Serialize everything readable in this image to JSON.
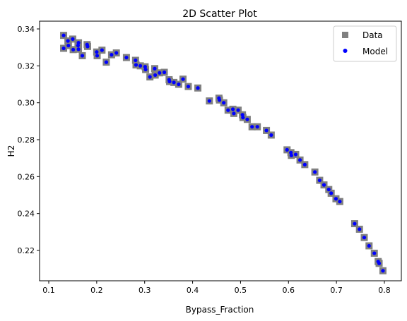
{
  "chart_data": {
    "type": "scatter",
    "title": "2D Scatter Plot",
    "xlabel": "Bypass_Fraction",
    "ylabel": "H2",
    "xlim": [
      0.1,
      0.8
    ],
    "ylim": [
      0.21,
      0.34
    ],
    "xticks": [
      "0.1",
      "0.2",
      "0.3",
      "0.4",
      "0.5",
      "0.6",
      "0.7",
      "0.8"
    ],
    "yticks": [
      "0.22",
      "0.24",
      "0.26",
      "0.28",
      "0.30",
      "0.32",
      "0.34"
    ],
    "grid": false,
    "legend": "top-right",
    "series": [
      {
        "name": "Data",
        "marker": "square",
        "color": "#808080",
        "points": [
          [
            0.131,
            0.3365
          ],
          [
            0.131,
            0.3295
          ],
          [
            0.14,
            0.3335
          ],
          [
            0.141,
            0.331
          ],
          [
            0.15,
            0.3345
          ],
          [
            0.151,
            0.3288
          ],
          [
            0.161,
            0.331
          ],
          [
            0.162,
            0.3325
          ],
          [
            0.162,
            0.329
          ],
          [
            0.17,
            0.3255
          ],
          [
            0.18,
            0.3315
          ],
          [
            0.181,
            0.3305
          ],
          [
            0.2,
            0.3275
          ],
          [
            0.201,
            0.3255
          ],
          [
            0.211,
            0.3285
          ],
          [
            0.22,
            0.322
          ],
          [
            0.231,
            0.326
          ],
          [
            0.241,
            0.327
          ],
          [
            0.262,
            0.3245
          ],
          [
            0.281,
            0.323
          ],
          [
            0.282,
            0.3205
          ],
          [
            0.291,
            0.32
          ],
          [
            0.301,
            0.3195
          ],
          [
            0.302,
            0.318
          ],
          [
            0.311,
            0.314
          ],
          [
            0.321,
            0.3185
          ],
          [
            0.322,
            0.315
          ],
          [
            0.331,
            0.3162
          ],
          [
            0.341,
            0.3165
          ],
          [
            0.351,
            0.3125
          ],
          [
            0.352,
            0.3115
          ],
          [
            0.361,
            0.311
          ],
          [
            0.371,
            0.31
          ],
          [
            0.38,
            0.3128
          ],
          [
            0.391,
            0.3088
          ],
          [
            0.411,
            0.308
          ],
          [
            0.435,
            0.301
          ],
          [
            0.455,
            0.3025
          ],
          [
            0.456,
            0.3015
          ],
          [
            0.465,
            0.3
          ],
          [
            0.474,
            0.296
          ],
          [
            0.484,
            0.2965
          ],
          [
            0.486,
            0.2942
          ],
          [
            0.495,
            0.296
          ],
          [
            0.504,
            0.2935
          ],
          [
            0.505,
            0.292
          ],
          [
            0.514,
            0.291
          ],
          [
            0.524,
            0.287
          ],
          [
            0.535,
            0.287
          ],
          [
            0.554,
            0.285
          ],
          [
            0.564,
            0.2825
          ],
          [
            0.597,
            0.2745
          ],
          [
            0.605,
            0.273
          ],
          [
            0.606,
            0.2715
          ],
          [
            0.615,
            0.272
          ],
          [
            0.624,
            0.269
          ],
          [
            0.634,
            0.2665
          ],
          [
            0.655,
            0.2625
          ],
          [
            0.665,
            0.258
          ],
          [
            0.674,
            0.2555
          ],
          [
            0.684,
            0.253
          ],
          [
            0.689,
            0.251
          ],
          [
            0.699,
            0.248
          ],
          [
            0.707,
            0.2465
          ],
          [
            0.738,
            0.2345
          ],
          [
            0.748,
            0.2315
          ],
          [
            0.758,
            0.227
          ],
          [
            0.768,
            0.2225
          ],
          [
            0.779,
            0.2185
          ],
          [
            0.787,
            0.214
          ],
          [
            0.789,
            0.213
          ],
          [
            0.797,
            0.209
          ]
        ]
      },
      {
        "name": "Model",
        "marker": "circle",
        "color": "#0000ff",
        "points": [
          [
            0.131,
            0.3365
          ],
          [
            0.131,
            0.3295
          ],
          [
            0.14,
            0.3335
          ],
          [
            0.141,
            0.331
          ],
          [
            0.15,
            0.3345
          ],
          [
            0.151,
            0.3288
          ],
          [
            0.161,
            0.331
          ],
          [
            0.162,
            0.3325
          ],
          [
            0.162,
            0.329
          ],
          [
            0.17,
            0.3255
          ],
          [
            0.18,
            0.3315
          ],
          [
            0.181,
            0.3305
          ],
          [
            0.2,
            0.3275
          ],
          [
            0.201,
            0.3255
          ],
          [
            0.211,
            0.3285
          ],
          [
            0.22,
            0.322
          ],
          [
            0.231,
            0.326
          ],
          [
            0.241,
            0.327
          ],
          [
            0.262,
            0.3245
          ],
          [
            0.281,
            0.323
          ],
          [
            0.282,
            0.3205
          ],
          [
            0.291,
            0.32
          ],
          [
            0.301,
            0.3195
          ],
          [
            0.302,
            0.318
          ],
          [
            0.311,
            0.314
          ],
          [
            0.321,
            0.3185
          ],
          [
            0.322,
            0.315
          ],
          [
            0.331,
            0.3162
          ],
          [
            0.341,
            0.3165
          ],
          [
            0.351,
            0.3125
          ],
          [
            0.352,
            0.3115
          ],
          [
            0.361,
            0.311
          ],
          [
            0.371,
            0.31
          ],
          [
            0.38,
            0.3128
          ],
          [
            0.391,
            0.3088
          ],
          [
            0.411,
            0.308
          ],
          [
            0.435,
            0.301
          ],
          [
            0.455,
            0.3025
          ],
          [
            0.456,
            0.3015
          ],
          [
            0.465,
            0.3
          ],
          [
            0.474,
            0.296
          ],
          [
            0.484,
            0.2965
          ],
          [
            0.486,
            0.2942
          ],
          [
            0.495,
            0.296
          ],
          [
            0.504,
            0.2935
          ],
          [
            0.505,
            0.292
          ],
          [
            0.514,
            0.291
          ],
          [
            0.524,
            0.287
          ],
          [
            0.535,
            0.287
          ],
          [
            0.554,
            0.285
          ],
          [
            0.564,
            0.2825
          ],
          [
            0.597,
            0.2745
          ],
          [
            0.605,
            0.273
          ],
          [
            0.606,
            0.2715
          ],
          [
            0.615,
            0.272
          ],
          [
            0.624,
            0.269
          ],
          [
            0.634,
            0.2665
          ],
          [
            0.655,
            0.2625
          ],
          [
            0.665,
            0.258
          ],
          [
            0.674,
            0.2555
          ],
          [
            0.684,
            0.253
          ],
          [
            0.689,
            0.251
          ],
          [
            0.699,
            0.248
          ],
          [
            0.707,
            0.2465
          ],
          [
            0.738,
            0.2345
          ],
          [
            0.748,
            0.2315
          ],
          [
            0.758,
            0.227
          ],
          [
            0.768,
            0.2225
          ],
          [
            0.779,
            0.2185
          ],
          [
            0.787,
            0.214
          ],
          [
            0.789,
            0.213
          ],
          [
            0.797,
            0.209
          ]
        ]
      }
    ]
  }
}
